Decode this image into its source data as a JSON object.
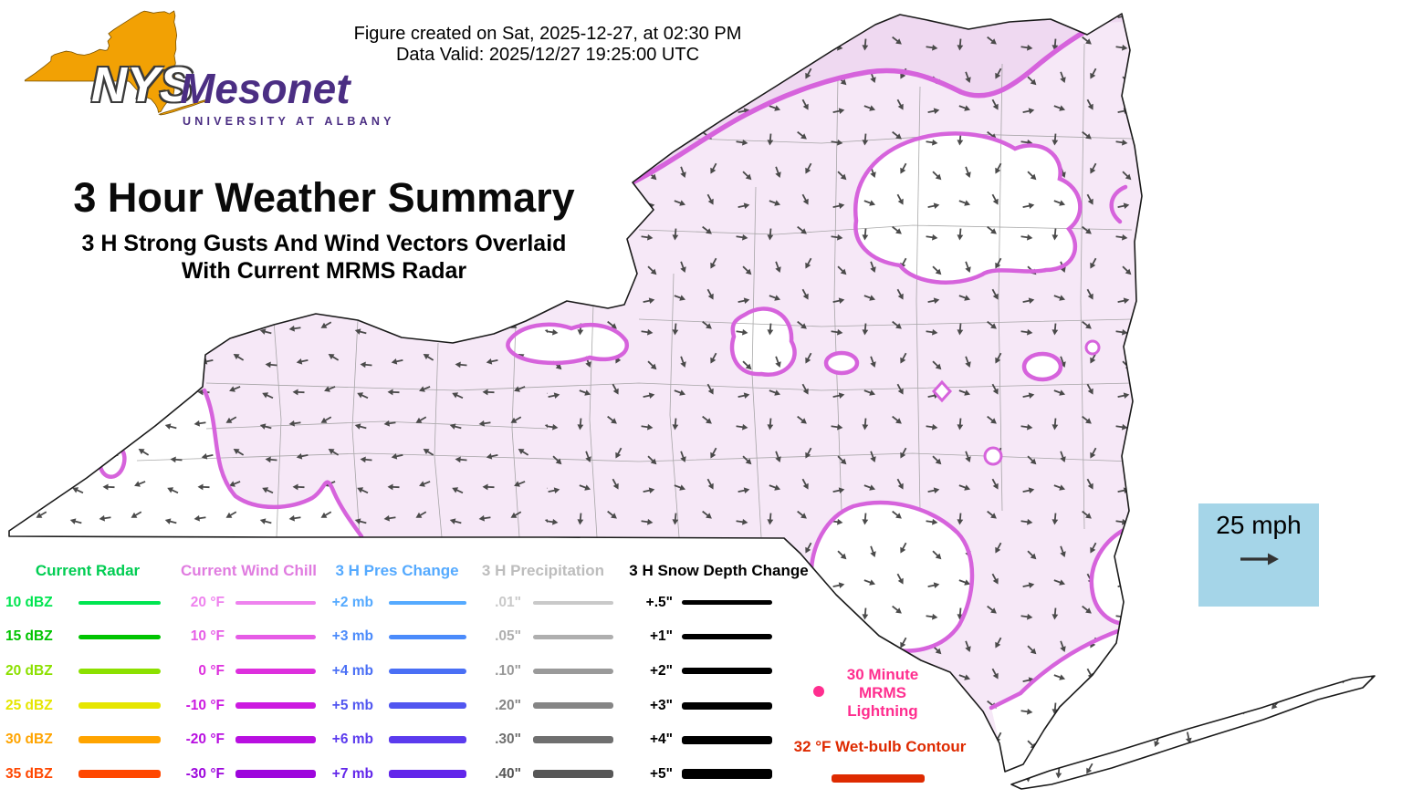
{
  "header": {
    "created_line": "Figure created on Sat, 2025-12-27, at 02:30 PM",
    "valid_line": "Data Valid: 2025/12/27 19:25:00 UTC"
  },
  "logo": {
    "acronym": "NYS",
    "name": "Mesonet",
    "affiliation": "UNIVERSITY AT ALBANY"
  },
  "title": "3 Hour Weather Summary",
  "subtitle_line1": "3 H Strong Gusts And Wind Vectors Overlaid",
  "subtitle_line2": "With Current MRMS Radar",
  "wind_reference": {
    "label": "25 mph",
    "bg": "#A5D5E8"
  },
  "map": {
    "colors": {
      "shade": "#F6E8F7",
      "shadeN": "#EFD9F1",
      "contour": "#D663DC",
      "outline": "#1A1A1A",
      "county": "#999999",
      "arrow": "#4A4A4A"
    }
  },
  "legend": {
    "columns": [
      {
        "header": "Current Radar",
        "header_color": "#00CD52",
        "rows": [
          {
            "label": "10 dBZ",
            "color": "#00E550",
            "thickness": 4
          },
          {
            "label": "15 dBZ",
            "color": "#00C400",
            "thickness": 5
          },
          {
            "label": "20 dBZ",
            "color": "#8CE000",
            "thickness": 6
          },
          {
            "label": "25 dBZ",
            "color": "#E6E600",
            "thickness": 7
          },
          {
            "label": "30 dBZ",
            "color": "#FFA400",
            "thickness": 8
          },
          {
            "label": "35 dBZ",
            "color": "#FF4700",
            "thickness": 9
          }
        ]
      },
      {
        "header": "Current Wind Chill",
        "header_color": "#E07CE0",
        "rows": [
          {
            "label": "20 °F",
            "color": "#EE82EE",
            "thickness": 4
          },
          {
            "label": "10 °F",
            "color": "#E65CE6",
            "thickness": 5
          },
          {
            "label": "0 °F",
            "color": "#DD2FDD",
            "thickness": 6
          },
          {
            "label": "-10 °F",
            "color": "#CC1AE0",
            "thickness": 7
          },
          {
            "label": "-20 °F",
            "color": "#B80FE0",
            "thickness": 8
          },
          {
            "label": "-30 °F",
            "color": "#9D06DC",
            "thickness": 9
          }
        ]
      },
      {
        "header": "3 H Pres Change",
        "header_color": "#55AAFF",
        "rows": [
          {
            "label": "+2 mb",
            "color": "#55AAFF",
            "thickness": 4
          },
          {
            "label": "+3 mb",
            "color": "#4B8BFB",
            "thickness": 5
          },
          {
            "label": "+4 mb",
            "color": "#4A6FF5",
            "thickness": 6
          },
          {
            "label": "+5 mb",
            "color": "#5156F0",
            "thickness": 7
          },
          {
            "label": "+6 mb",
            "color": "#5B3BEE",
            "thickness": 8
          },
          {
            "label": "+7 mb",
            "color": "#6226EA",
            "thickness": 9
          }
        ]
      },
      {
        "header": "3 H Precipitation",
        "header_color": "#BDBDBD",
        "rows": [
          {
            "label": ".01\"",
            "color": "#C9C9C9",
            "thickness": 4
          },
          {
            "label": ".05\"",
            "color": "#AFAFAF",
            "thickness": 5
          },
          {
            "label": ".10\"",
            "color": "#9A9A9A",
            "thickness": 6
          },
          {
            "label": ".20\"",
            "color": "#858585",
            "thickness": 7
          },
          {
            "label": ".30\"",
            "color": "#6F6F6F",
            "thickness": 8
          },
          {
            "label": ".40\"",
            "color": "#575757",
            "thickness": 9
          }
        ]
      },
      {
        "header": "3 H Snow Depth Change",
        "header_color": "#000000",
        "rows": [
          {
            "label": "+.5\"",
            "color": "#000000",
            "thickness": 5
          },
          {
            "label": "+1\"",
            "color": "#000000",
            "thickness": 6
          },
          {
            "label": "+2\"",
            "color": "#000000",
            "thickness": 7
          },
          {
            "label": "+3\"",
            "color": "#000000",
            "thickness": 8
          },
          {
            "label": "+4\"",
            "color": "#000000",
            "thickness": 9
          },
          {
            "label": "+5\"",
            "color": "#000000",
            "thickness": 11
          }
        ]
      }
    ],
    "lightning": {
      "label_lines": [
        "30 Minute",
        "MRMS",
        "Lightning"
      ],
      "color": "#FF2E8F"
    },
    "wetbulb": {
      "label": "32 °F Wet-bulb Contour",
      "color": "#DE2A00"
    }
  }
}
